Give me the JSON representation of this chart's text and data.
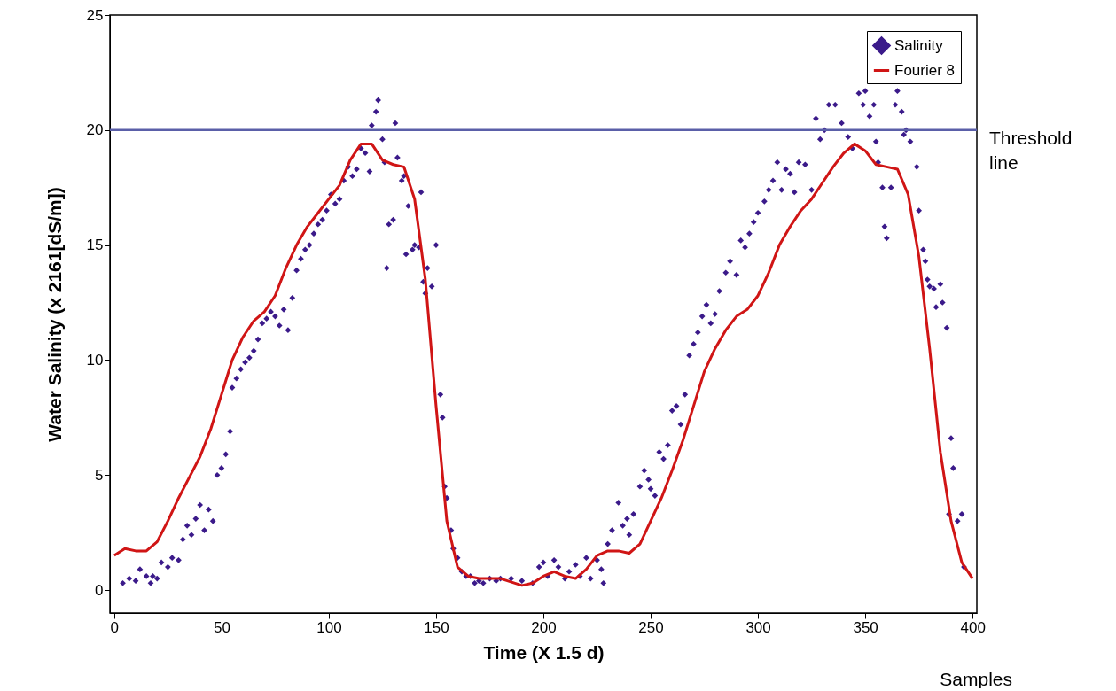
{
  "chart_data": {
    "type": "scatter",
    "xlabel": "Time (X 1.5 d)",
    "ylabel": "Water Salinity (x 2161[dS/m])",
    "xlim": [
      -2,
      402
    ],
    "ylim": [
      -1,
      25
    ],
    "xticks": [
      0,
      50,
      100,
      150,
      200,
      250,
      300,
      350,
      400
    ],
    "yticks": [
      0,
      5,
      10,
      15,
      20,
      25
    ],
    "grid": false,
    "legend": "top right",
    "annotations": [
      "Samples"
    ],
    "ref_lines": [
      {
        "axis": "y",
        "value": 20,
        "label": "Threshold line",
        "color": "#5a5fa8"
      }
    ],
    "series": [
      {
        "name": "Salinity",
        "marker": "diamond",
        "color": "#3b1a8a",
        "x": [
          4,
          7,
          10,
          12,
          15,
          17,
          18,
          20,
          22,
          25,
          27,
          30,
          32,
          34,
          36,
          38,
          40,
          42,
          44,
          46,
          48,
          50,
          52,
          54,
          55,
          57,
          59,
          61,
          63,
          65,
          67,
          69,
          71,
          73,
          75,
          77,
          79,
          81,
          83,
          85,
          87,
          89,
          91,
          93,
          95,
          97,
          99,
          101,
          103,
          105,
          107,
          109,
          111,
          113,
          115,
          117,
          119,
          120,
          122,
          123,
          125,
          126,
          127,
          128,
          130,
          131,
          132,
          134,
          135,
          136,
          137,
          139,
          140,
          142,
          143,
          144,
          145,
          146,
          148,
          150,
          152,
          153,
          154,
          155,
          157,
          158,
          160,
          162,
          164,
          166,
          168,
          170,
          172,
          175,
          178,
          180,
          185,
          190,
          195,
          198,
          200,
          202,
          205,
          207,
          210,
          212,
          215,
          217,
          220,
          222,
          225,
          227,
          228,
          230,
          232,
          235,
          237,
          239,
          240,
          242,
          245,
          247,
          249,
          250,
          252,
          254,
          256,
          258,
          260,
          262,
          264,
          266,
          268,
          270,
          272,
          274,
          276,
          278,
          280,
          282,
          285,
          287,
          290,
          292,
          294,
          296,
          298,
          300,
          303,
          305,
          307,
          309,
          311,
          313,
          315,
          317,
          319,
          322,
          325,
          327,
          329,
          331,
          333,
          336,
          339,
          342,
          344,
          347,
          349,
          350,
          352,
          354,
          355,
          356,
          358,
          359,
          360,
          362,
          364,
          365,
          367,
          368,
          369,
          371,
          374,
          375,
          377,
          378,
          379,
          380,
          382,
          383,
          385,
          386,
          388,
          389,
          390,
          391,
          393,
          395,
          396
        ],
        "values": [
          0.3,
          0.5,
          0.4,
          0.9,
          0.6,
          0.3,
          0.6,
          0.5,
          1.2,
          1.0,
          1.4,
          1.3,
          2.2,
          2.8,
          2.4,
          3.1,
          3.7,
          2.6,
          3.5,
          3.0,
          5.0,
          5.3,
          5.9,
          6.9,
          8.8,
          9.2,
          9.6,
          9.9,
          10.1,
          10.4,
          10.9,
          11.6,
          11.8,
          12.1,
          11.9,
          11.5,
          12.2,
          11.3,
          12.7,
          13.9,
          14.4,
          14.8,
          15.0,
          15.5,
          15.9,
          16.1,
          16.5,
          17.2,
          16.8,
          17.0,
          17.8,
          18.4,
          18.0,
          18.3,
          19.2,
          19.0,
          18.2,
          20.2,
          20.8,
          21.3,
          19.6,
          18.6,
          14.0,
          15.9,
          16.1,
          20.3,
          18.8,
          17.8,
          18.0,
          14.6,
          16.7,
          14.8,
          15.0,
          14.9,
          17.3,
          13.4,
          12.9,
          14.0,
          13.2,
          15.0,
          8.5,
          7.5,
          4.5,
          4.0,
          2.6,
          1.8,
          1.4,
          0.8,
          0.6,
          0.6,
          0.3,
          0.4,
          0.3,
          0.5,
          0.4,
          0.5,
          0.5,
          0.4,
          0.3,
          1.0,
          1.2,
          0.6,
          1.3,
          1.0,
          0.5,
          0.8,
          1.1,
          0.6,
          1.4,
          0.5,
          1.3,
          0.9,
          0.3,
          2.0,
          2.6,
          3.8,
          2.8,
          3.1,
          2.4,
          3.3,
          4.5,
          5.2,
          4.8,
          4.4,
          4.1,
          6.0,
          5.7,
          6.3,
          7.8,
          8.0,
          7.2,
          8.5,
          10.2,
          10.7,
          11.2,
          11.9,
          12.4,
          11.6,
          12.0,
          13.0,
          13.8,
          14.3,
          13.7,
          15.2,
          14.9,
          15.5,
          16.0,
          16.4,
          16.9,
          17.4,
          17.8,
          18.6,
          17.4,
          18.3,
          18.1,
          17.3,
          18.6,
          18.5,
          17.4,
          20.5,
          19.6,
          20.0,
          21.1,
          21.1,
          20.3,
          19.7,
          19.2,
          21.6,
          21.1,
          21.7,
          20.6,
          21.1,
          19.5,
          18.6,
          17.5,
          15.8,
          15.3,
          17.5,
          21.1,
          21.7,
          20.8,
          19.8,
          20.0,
          19.5,
          18.4,
          16.5,
          14.8,
          14.3,
          13.5,
          13.2,
          13.1,
          12.3,
          13.3,
          12.5,
          11.4,
          3.3,
          6.6,
          5.3,
          3.0,
          3.3,
          1.0
        ]
      },
      {
        "name": "Fourier 8",
        "type": "line",
        "color": "#d01515",
        "line_style": "solid",
        "x": [
          0,
          5,
          10,
          15,
          20,
          25,
          30,
          35,
          40,
          45,
          50,
          55,
          60,
          65,
          70,
          75,
          80,
          85,
          90,
          95,
          100,
          105,
          110,
          115,
          120,
          125,
          130,
          135,
          140,
          145,
          150,
          155,
          160,
          165,
          170,
          180,
          190,
          195,
          200,
          205,
          210,
          215,
          220,
          225,
          230,
          235,
          240,
          245,
          250,
          255,
          260,
          265,
          270,
          275,
          280,
          285,
          290,
          295,
          300,
          305,
          310,
          315,
          320,
          325,
          330,
          335,
          340,
          345,
          350,
          355,
          360,
          365,
          370,
          375,
          380,
          385,
          390,
          395,
          400
        ],
        "values": [
          1.5,
          1.8,
          1.7,
          1.7,
          2.1,
          3.0,
          4.0,
          4.9,
          5.8,
          7.0,
          8.5,
          10.0,
          11.0,
          11.7,
          12.1,
          12.8,
          14.0,
          15.0,
          15.8,
          16.4,
          17.0,
          17.6,
          18.7,
          19.4,
          19.4,
          18.7,
          18.5,
          18.4,
          17.0,
          13.5,
          8.0,
          3.0,
          1.0,
          0.6,
          0.5,
          0.5,
          0.2,
          0.3,
          0.6,
          0.8,
          0.6,
          0.5,
          0.9,
          1.5,
          1.7,
          1.7,
          1.6,
          2.0,
          3.0,
          4.0,
          5.2,
          6.5,
          8.0,
          9.5,
          10.5,
          11.3,
          11.9,
          12.2,
          12.8,
          13.8,
          15.0,
          15.8,
          16.5,
          17.0,
          17.7,
          18.4,
          19.0,
          19.4,
          19.1,
          18.5,
          18.4,
          18.3,
          17.2,
          14.5,
          10.5,
          6.0,
          3.0,
          1.2,
          0.5
        ]
      }
    ]
  }
}
